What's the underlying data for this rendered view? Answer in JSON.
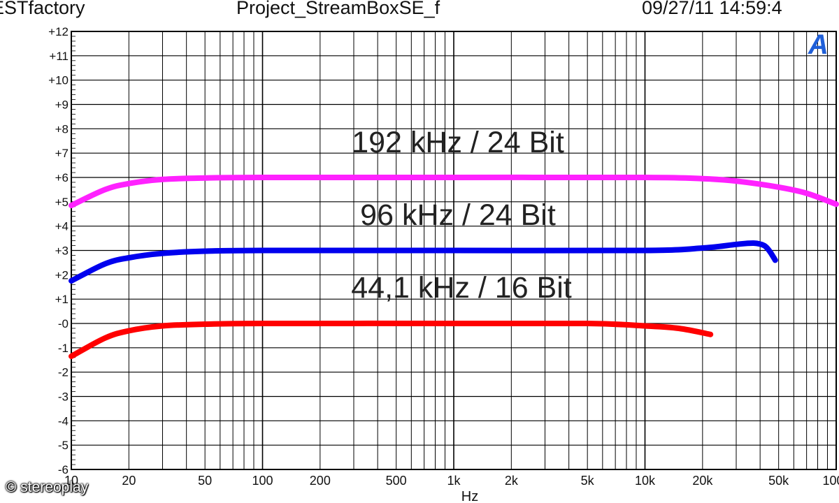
{
  "header": {
    "left": "ESTfactory",
    "center": "Project_StreamBoxSE_f",
    "right": "09/27/11 14:59:4"
  },
  "logo_text": "A",
  "watermark": "© stereoplay",
  "chart_data": {
    "type": "line",
    "title": "",
    "xlabel": "Hz",
    "ylabel": "",
    "x_scale": "log",
    "xlim": [
      10,
      100000
    ],
    "ylim": [
      -6,
      12
    ],
    "grid": true,
    "x_ticks": [
      10,
      20,
      50,
      100,
      200,
      500,
      1000,
      2000,
      5000,
      10000,
      20000,
      50000,
      100000
    ],
    "x_tick_labels": [
      "10",
      "20",
      "50",
      "100",
      "200",
      "500",
      "1k",
      "2k",
      "5k",
      "10k",
      "20k",
      "50k",
      "100k"
    ],
    "y_ticks": [
      12,
      11,
      10,
      9,
      8,
      7,
      6,
      5,
      4,
      3,
      2,
      1,
      0,
      -1,
      -2,
      -3,
      -4,
      -5,
      -6
    ],
    "y_tick_labels": [
      "+12",
      "+11",
      "+10",
      "+9",
      "+8",
      "+7",
      "+6",
      "+5",
      "+4",
      "+3",
      "+2",
      "+1",
      "-0",
      "-1",
      "-2",
      "-3",
      "-4",
      "-5",
      "-6"
    ],
    "annotations": [
      {
        "text": "192 kHz / 24 Bit",
        "series": 0
      },
      {
        "text": "96 kHz / 24 Bit",
        "series": 1
      },
      {
        "text": "44,1 kHz / 16 Bit",
        "series": 2
      }
    ],
    "series": [
      {
        "color": "#ff22ff",
        "x": [
          10,
          15,
          20,
          30,
          50,
          100,
          1000,
          10000,
          20000,
          30000,
          50000,
          70000,
          100000
        ],
        "y": [
          4.85,
          5.5,
          5.75,
          5.92,
          5.98,
          6.0,
          6.0,
          6.0,
          5.95,
          5.85,
          5.6,
          5.35,
          4.9
        ]
      },
      {
        "color": "#0000ee",
        "x": [
          10,
          15,
          20,
          30,
          50,
          100,
          1000,
          10000,
          20000,
          30000,
          37000,
          42000,
          45000,
          48000
        ],
        "y": [
          1.75,
          2.45,
          2.7,
          2.88,
          2.97,
          3.0,
          3.0,
          3.0,
          3.1,
          3.25,
          3.3,
          3.2,
          2.95,
          2.6
        ]
      },
      {
        "color": "#ff0000",
        "x": [
          10,
          15,
          20,
          30,
          50,
          100,
          1000,
          5000,
          10000,
          15000,
          22000
        ],
        "y": [
          -1.35,
          -0.6,
          -0.3,
          -0.1,
          -0.03,
          0.0,
          0.0,
          0.0,
          -0.1,
          -0.2,
          -0.45
        ]
      }
    ]
  }
}
